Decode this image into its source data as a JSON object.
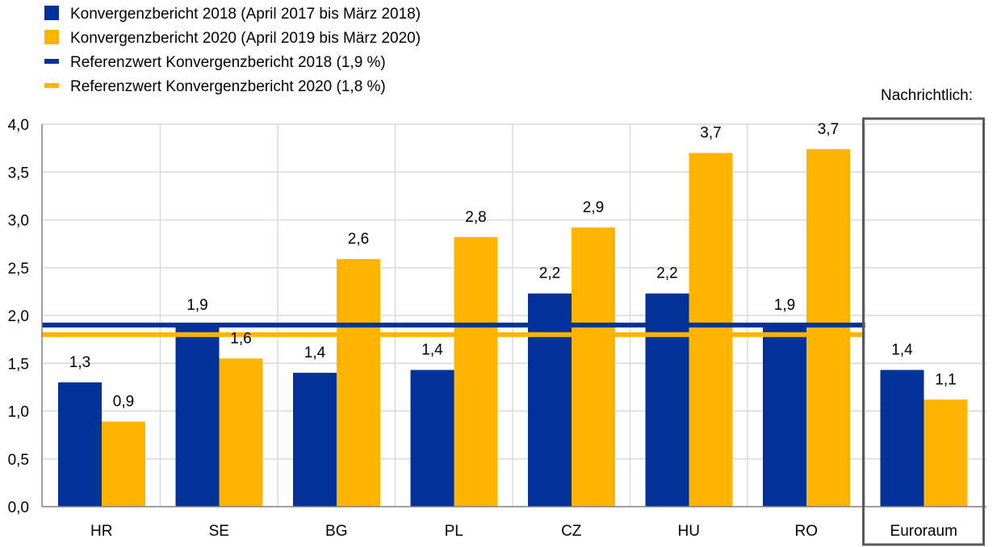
{
  "colors": {
    "series_2018": "#003299",
    "series_2020": "#FFB400",
    "grid": "#d9d9d9",
    "axis": "#808080",
    "box": "#595959"
  },
  "legend": [
    {
      "type": "bar",
      "label": "Konvergenzbericht 2018 (April 2017 bis März 2018)",
      "color": "#003299"
    },
    {
      "type": "bar",
      "label": "Konvergenzbericht 2020 (April 2019 bis März 2020)",
      "color": "#FFB400"
    },
    {
      "type": "line",
      "label": "Referenzwert Konvergenzbericht 2018 (1,9 %)",
      "color": "#003299"
    },
    {
      "type": "line",
      "label": "Referenzwert Konvergenzbericht 2020 (1,8 %)",
      "color": "#FFB400"
    }
  ],
  "memo_label": "Nachrichtlich:",
  "chart_data": {
    "type": "bar",
    "categories": [
      "HR",
      "SE",
      "BG",
      "PL",
      "CZ",
      "HU",
      "RO",
      "Euroraum"
    ],
    "series": [
      {
        "name": "Konvergenzbericht 2018 (April 2017 bis März 2018)",
        "values": [
          1.3,
          1.9,
          1.4,
          1.43,
          2.23,
          2.23,
          1.9,
          1.43
        ],
        "labels": [
          "1,3",
          "1,9",
          "1,4",
          "1,4",
          "2,2",
          "2,2",
          "1,9",
          "1,4"
        ]
      },
      {
        "name": "Konvergenzbericht 2020 (April 2019 bis März 2020)",
        "values": [
          0.89,
          1.55,
          2.59,
          2.82,
          2.92,
          3.7,
          3.74,
          1.12
        ],
        "labels": [
          "0,9",
          "1,6",
          "2,6",
          "2,8",
          "2,9",
          "3,7",
          "3,7",
          "1,1"
        ]
      }
    ],
    "reference_lines": [
      {
        "name": "Referenzwert Konvergenzbericht 2018 (1,9 %)",
        "value": 1.9
      },
      {
        "name": "Referenzwert Konvergenzbericht 2020 (1,8 %)",
        "value": 1.8
      }
    ],
    "ylim": [
      0,
      4
    ],
    "yticks": [
      0,
      0.5,
      1,
      1.5,
      2,
      2.5,
      3,
      3.5,
      4
    ],
    "ytick_labels": [
      "0,0",
      "0,5",
      "1,0",
      "1,5",
      "2,0",
      "2,5",
      "3,0",
      "3,5",
      "4,0"
    ],
    "grid": true,
    "legend_position": "top-left",
    "title": "",
    "xlabel": "",
    "ylabel": ""
  }
}
